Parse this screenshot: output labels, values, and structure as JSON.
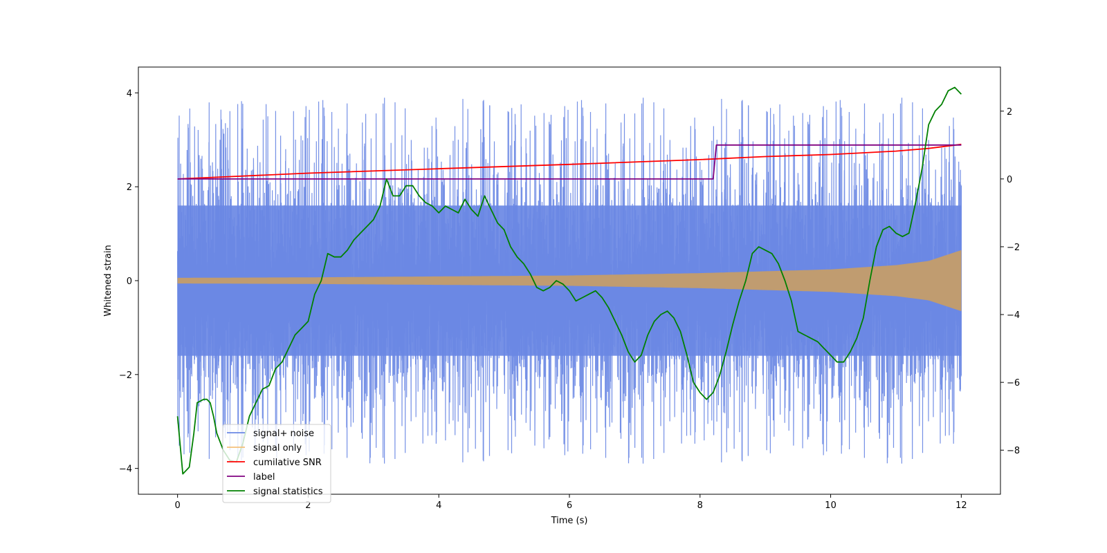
{
  "chart_data": {
    "type": "line",
    "title": "",
    "xlabel": "Time (s)",
    "ylabel": "Whitened strain",
    "y2label": "",
    "xlim": [
      -0.6,
      12.6
    ],
    "ylim": [
      -4.55,
      4.55
    ],
    "y2lim": [
      -9.3,
      3.3
    ],
    "xticks": [
      0,
      2,
      4,
      6,
      8,
      10,
      12
    ],
    "xtick_labels": [
      "0",
      "2",
      "4",
      "6",
      "8",
      "10",
      "12"
    ],
    "yticks": [
      -4,
      -2,
      0,
      2,
      4
    ],
    "ytick_labels": [
      "−4",
      "−2",
      "0",
      "2",
      "4"
    ],
    "y2ticks": [
      -8,
      -6,
      -4,
      -2,
      0,
      2
    ],
    "y2tick_labels": [
      "−8",
      "−6",
      "−4",
      "−2",
      "0",
      "2"
    ],
    "grid": false,
    "legend_position": "bottom-left",
    "series": [
      {
        "name": "signal+ noise",
        "axis": "left",
        "color": "#6a88e4",
        "kind": "noise-band",
        "x_range": [
          0,
          12
        ],
        "core_amplitude": 1.6,
        "peak_max": 4.1,
        "peak_min": -4.1
      },
      {
        "name": "signal only",
        "axis": "left",
        "color": "#f5c07a",
        "kind": "chirp-envelope",
        "x_range": [
          0,
          12
        ],
        "amplitude_points": [
          [
            0,
            0.06
          ],
          [
            2,
            0.07
          ],
          [
            4,
            0.09
          ],
          [
            6,
            0.11
          ],
          [
            8,
            0.16
          ],
          [
            10,
            0.24
          ],
          [
            11,
            0.33
          ],
          [
            11.5,
            0.42
          ],
          [
            12,
            0.65
          ]
        ]
      },
      {
        "name": "cumilative SNR",
        "axis": "right",
        "color": "#ff0000",
        "kind": "line",
        "x": [
          0,
          2,
          4,
          6,
          8,
          9,
          10,
          11,
          11.5,
          12
        ],
        "y": [
          0.0,
          0.17,
          0.3,
          0.43,
          0.57,
          0.66,
          0.72,
          0.82,
          0.9,
          1.02
        ]
      },
      {
        "name": "label",
        "axis": "right",
        "color": "#800080",
        "kind": "line",
        "x": [
          0,
          8.2,
          8.25,
          12
        ],
        "y": [
          0,
          0,
          1,
          1
        ]
      },
      {
        "name": "signal statistics",
        "axis": "right",
        "color": "#008000",
        "kind": "line",
        "x": [
          0,
          0.08,
          0.18,
          0.25,
          0.3,
          0.4,
          0.45,
          0.5,
          0.55,
          0.6,
          0.7,
          0.8,
          0.9,
          1.0,
          1.1,
          1.2,
          1.3,
          1.4,
          1.5,
          1.6,
          1.7,
          1.8,
          1.9,
          2.0,
          2.1,
          2.2,
          2.3,
          2.4,
          2.5,
          2.6,
          2.7,
          2.8,
          2.9,
          3.0,
          3.1,
          3.2,
          3.3,
          3.4,
          3.5,
          3.6,
          3.7,
          3.8,
          3.9,
          4.0,
          4.1,
          4.2,
          4.3,
          4.4,
          4.5,
          4.6,
          4.7,
          4.8,
          4.9,
          5.0,
          5.1,
          5.2,
          5.3,
          5.4,
          5.5,
          5.6,
          5.7,
          5.8,
          5.9,
          6.0,
          6.1,
          6.2,
          6.3,
          6.4,
          6.5,
          6.6,
          6.7,
          6.8,
          6.9,
          7.0,
          7.1,
          7.2,
          7.3,
          7.4,
          7.5,
          7.6,
          7.7,
          7.8,
          7.9,
          8.0,
          8.1,
          8.2,
          8.3,
          8.4,
          8.5,
          8.6,
          8.7,
          8.8,
          8.9,
          9.0,
          9.1,
          9.2,
          9.3,
          9.4,
          9.5,
          9.6,
          9.7,
          9.8,
          9.9,
          10.0,
          10.1,
          10.2,
          10.3,
          10.4,
          10.5,
          10.6,
          10.7,
          10.8,
          10.9,
          11.0,
          11.1,
          11.2,
          11.3,
          11.4,
          11.5,
          11.6,
          11.7,
          11.8,
          11.9,
          12.0
        ],
        "y": [
          -7.0,
          -8.7,
          -8.5,
          -7.5,
          -6.6,
          -6.5,
          -6.5,
          -6.6,
          -7.0,
          -7.5,
          -8.0,
          -8.3,
          -8.35,
          -7.8,
          -7.0,
          -6.6,
          -6.2,
          -6.1,
          -5.6,
          -5.4,
          -5.0,
          -4.6,
          -4.4,
          -4.2,
          -3.4,
          -3.0,
          -2.2,
          -2.3,
          -2.3,
          -2.1,
          -1.8,
          -1.6,
          -1.4,
          -1.2,
          -0.8,
          0.0,
          -0.5,
          -0.5,
          -0.2,
          -0.2,
          -0.5,
          -0.7,
          -0.8,
          -1.0,
          -0.8,
          -0.9,
          -1.0,
          -0.6,
          -0.9,
          -1.1,
          -0.5,
          -0.9,
          -1.3,
          -1.5,
          -2.0,
          -2.3,
          -2.5,
          -2.8,
          -3.2,
          -3.3,
          -3.2,
          -3.0,
          -3.1,
          -3.3,
          -3.6,
          -3.5,
          -3.4,
          -3.3,
          -3.5,
          -3.8,
          -4.2,
          -4.6,
          -5.1,
          -5.4,
          -5.2,
          -4.6,
          -4.2,
          -4.0,
          -3.9,
          -4.1,
          -4.5,
          -5.2,
          -6.0,
          -6.3,
          -6.5,
          -6.3,
          -5.8,
          -5.1,
          -4.3,
          -3.6,
          -3.0,
          -2.2,
          -2.0,
          -2.1,
          -2.2,
          -2.5,
          -3.0,
          -3.6,
          -4.5,
          -4.6,
          -4.7,
          -4.8,
          -5.0,
          -5.2,
          -5.4,
          -5.4,
          -5.1,
          -4.7,
          -4.1,
          -3.0,
          -2.0,
          -1.5,
          -1.4,
          -1.6,
          -1.7,
          -1.6,
          -0.7,
          0.3,
          1.6,
          2.0,
          2.2,
          2.6,
          2.7,
          2.5
        ]
      }
    ]
  }
}
